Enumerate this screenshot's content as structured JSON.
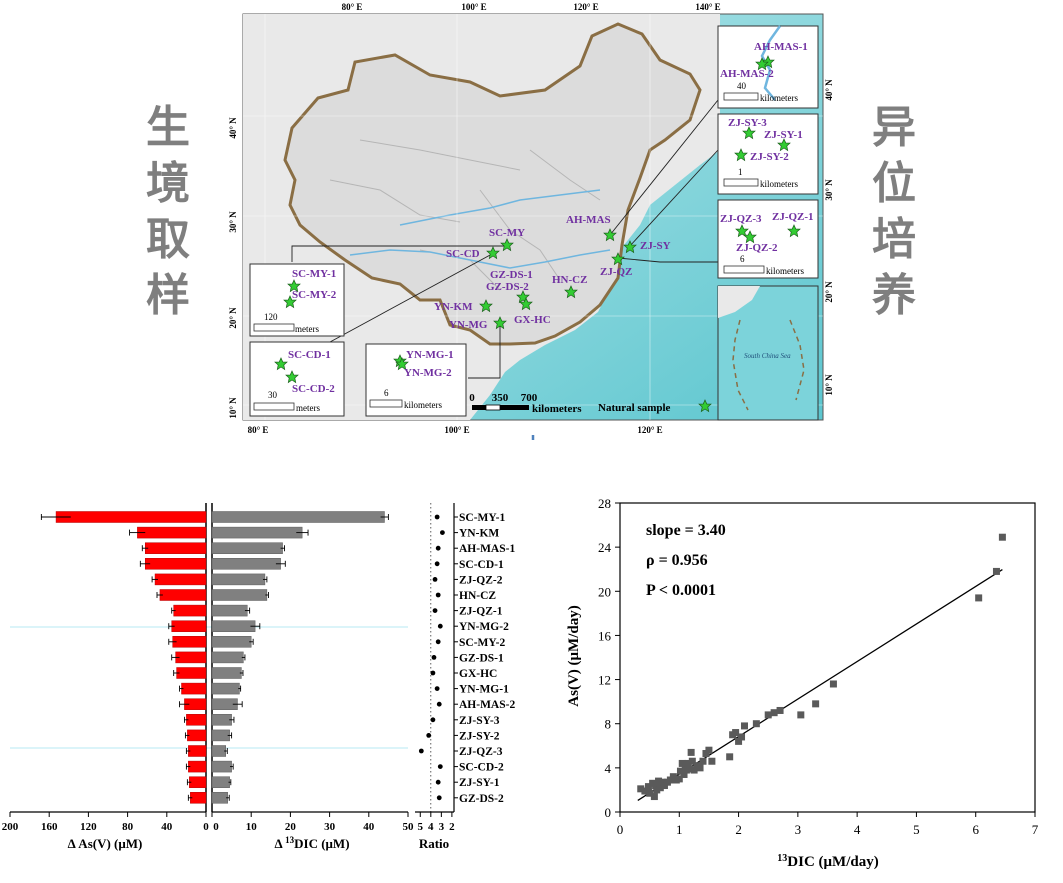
{
  "side_labels": {
    "left": [
      "生",
      "境",
      "取",
      "样"
    ],
    "right": [
      "异",
      "位",
      "培",
      "养"
    ]
  },
  "map": {
    "top_lon": [
      "80° E",
      "100° E",
      "120° E",
      "140° E"
    ],
    "bottom_lon": [
      "80° E",
      "100° E",
      "120° E"
    ],
    "left_lat": [
      "40° N",
      "30° N",
      "20° N",
      "10° N"
    ],
    "right_lat": [
      "40° N",
      "30° N",
      "20° N",
      "10° N"
    ],
    "sites": [
      "SC-MY",
      "SC-CD",
      "GZ-DS-1",
      "GZ-DS-2",
      "YN-KM",
      "YN-MG",
      "GX-HC",
      "HN-CZ",
      "AH-MAS",
      "ZJ-SY",
      "ZJ-QZ"
    ],
    "scalebar": {
      "ticks": [
        "0",
        "350",
        "700"
      ],
      "unit": "kilometers"
    },
    "legend_label": "Natural sample",
    "sea_label": "South China Sea",
    "insets": {
      "sc_my": {
        "labels": [
          "SC-MY-1",
          "SC-MY-2"
        ],
        "scale": "120",
        "unit": "meters"
      },
      "sc_cd": {
        "labels": [
          "SC-CD-1",
          "SC-CD-2"
        ],
        "scale": "30",
        "unit": "meters"
      },
      "yn_mg": {
        "labels": [
          "YN-MG-1",
          "YN-MG-2"
        ],
        "scale": "6",
        "unit": "kilometers"
      },
      "ah_mas": {
        "labels": [
          "AH-MAS-1",
          "AH-MAS-2"
        ],
        "scale": "40",
        "unit": "kilometers"
      },
      "zj_sy": {
        "labels": [
          "ZJ-SY-3",
          "ZJ-SY-1",
          "ZJ-SY-2"
        ],
        "scale": "1",
        "unit": "kilometers"
      },
      "zj_qz": {
        "labels": [
          "ZJ-QZ-3",
          "ZJ-QZ-1",
          "ZJ-QZ-2"
        ],
        "scale": "6",
        "unit": "kilometers"
      }
    }
  },
  "chart_data": [
    {
      "type": "bar",
      "orientation": "horizontal",
      "categories": [
        "SC-MY-1",
        "YN-KM",
        "AH-MAS-1",
        "SC-CD-1",
        "ZJ-QZ-2",
        "HN-CZ",
        "ZJ-QZ-1",
        "YN-MG-2",
        "SC-MY-2",
        "GZ-DS-1",
        "GX-HC",
        "YN-MG-1",
        "AH-MAS-2",
        "ZJ-SY-3",
        "ZJ-SY-2",
        "ZJ-QZ-3",
        "SC-CD-2",
        "ZJ-SY-1",
        "GZ-DS-2"
      ],
      "values": [
        153,
        70,
        62,
        62,
        52,
        47,
        33,
        35,
        34,
        31,
        30,
        25,
        22,
        20,
        19,
        18,
        18,
        17,
        16
      ],
      "errors": [
        15,
        8,
        3,
        5,
        3,
        3,
        2,
        3,
        4,
        4,
        3,
        2,
        5,
        2,
        2,
        2,
        2,
        2,
        2
      ],
      "xlabel": "Δ As(V)  (μM)",
      "xticks": [
        "200",
        "160",
        "120",
        "80",
        "40",
        "0"
      ],
      "xlim": [
        200,
        0
      ],
      "color": "#ff0000"
    },
    {
      "type": "bar",
      "orientation": "horizontal",
      "categories": [
        "SC-MY-1",
        "YN-KM",
        "AH-MAS-1",
        "SC-CD-1",
        "ZJ-QZ-2",
        "HN-CZ",
        "ZJ-QZ-1",
        "YN-MG-2",
        "SC-MY-2",
        "GZ-DS-1",
        "GX-HC",
        "YN-MG-1",
        "AH-MAS-2",
        "ZJ-SY-3",
        "ZJ-SY-2",
        "ZJ-QZ-3",
        "SC-CD-2",
        "ZJ-SY-1",
        "GZ-DS-2"
      ],
      "values": [
        44,
        23,
        18,
        17.5,
        13.5,
        14,
        9,
        11,
        10,
        8,
        7.5,
        7,
        6.5,
        5,
        4.5,
        3.5,
        5,
        4.5,
        4
      ],
      "errors": [
        1,
        1.5,
        0.5,
        1.2,
        0.5,
        0.4,
        0.6,
        1.2,
        0.5,
        0.4,
        0.4,
        0.3,
        1.2,
        0.6,
        0.5,
        0.4,
        0.4,
        0.3,
        0.4
      ],
      "xlabel_prefix": "Δ ",
      "xlabel_sup": "13",
      "xlabel_main": "DIC  (μM)",
      "xticks": [
        "0",
        "10",
        "20",
        "30",
        "40",
        "50"
      ],
      "xlim": [
        0,
        50
      ],
      "color": "#808080"
    },
    {
      "type": "scatter",
      "categories": [
        "SC-MY-1",
        "YN-KM",
        "AH-MAS-1",
        "SC-CD-1",
        "ZJ-QZ-2",
        "HN-CZ",
        "ZJ-QZ-1",
        "YN-MG-2",
        "SC-MY-2",
        "GZ-DS-1",
        "GX-HC",
        "YN-MG-1",
        "AH-MAS-2",
        "ZJ-SY-3",
        "ZJ-SY-2",
        "ZJ-QZ-3",
        "SC-CD-2",
        "ZJ-SY-1",
        "GZ-DS-2"
      ],
      "values": [
        3.4,
        2.9,
        3.3,
        3.4,
        3.6,
        3.3,
        3.6,
        3.1,
        3.3,
        3.7,
        3.8,
        3.4,
        3.2,
        3.8,
        4.2,
        4.9,
        3.1,
        3.3,
        3.2
      ],
      "xlabel": "Ratio",
      "xticks": [
        "5",
        "4",
        "3",
        "2"
      ],
      "xlim": [
        5.5,
        1.8
      ],
      "reference_x": 4
    },
    {
      "type": "scatter",
      "x": [
        0.35,
        0.42,
        0.48,
        0.5,
        0.55,
        0.58,
        0.6,
        0.62,
        0.65,
        0.68,
        0.7,
        0.72,
        0.75,
        0.8,
        0.85,
        0.9,
        0.95,
        1.0,
        1.02,
        1.05,
        1.08,
        1.1,
        1.12,
        1.15,
        1.18,
        1.2,
        1.22,
        1.25,
        1.3,
        1.35,
        1.4,
        1.45,
        1.5,
        1.55,
        1.85,
        1.9,
        1.95,
        2.0,
        2.05,
        2.1,
        2.3,
        2.5,
        2.6,
        2.7,
        3.05,
        3.3,
        3.6,
        6.05,
        6.35,
        6.45
      ],
      "y": [
        2.1,
        1.9,
        2.3,
        1.7,
        2.6,
        1.4,
        2.4,
        2.0,
        2.8,
        2.2,
        2.5,
        2.7,
        2.4,
        2.7,
        2.9,
        3.2,
        2.9,
        3.0,
        3.7,
        4.4,
        3.4,
        4.2,
        3.8,
        4.4,
        3.9,
        5.4,
        4.6,
        3.8,
        4.2,
        4.0,
        4.6,
        5.3,
        5.6,
        4.6,
        5.0,
        7.0,
        7.2,
        6.4,
        6.8,
        7.8,
        8.0,
        8.8,
        9.0,
        9.2,
        8.8,
        9.8,
        11.6,
        19.4,
        21.8,
        24.9
      ],
      "fit": {
        "x": [
          0.3,
          6.45
        ],
        "y": [
          1.05,
          21.97
        ]
      },
      "annotations": [
        "slope = 3.40",
        "ρ = 0.956",
        "P < 0.0001"
      ],
      "xlabel_sup": "13",
      "xlabel_main": "DIC  (μM/day)",
      "ylabel": "As(V)  (μM/day)",
      "xticks": [
        "0",
        "1",
        "2",
        "3",
        "4",
        "5",
        "6",
        "7"
      ],
      "yticks": [
        "0",
        "4",
        "8",
        "12",
        "16",
        "20",
        "24",
        "28"
      ],
      "xlim": [
        0,
        7
      ],
      "ylim": [
        0,
        28
      ],
      "marker_color": "#5a5a5a"
    }
  ]
}
